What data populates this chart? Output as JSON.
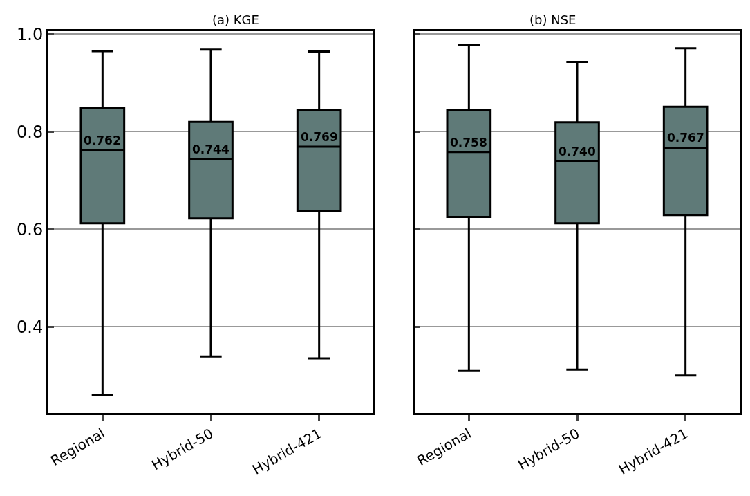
{
  "chart_data": [
    {
      "type": "box",
      "title": "(a) KGE",
      "categories": [
        "Regional",
        "Hybrid-50",
        "Hybrid-421"
      ],
      "boxes": [
        {
          "low": 0.259,
          "q1": 0.612,
          "median": 0.762,
          "q3": 0.849,
          "high": 0.965
        },
        {
          "low": 0.339,
          "q1": 0.622,
          "median": 0.744,
          "q3": 0.82,
          "high": 0.968
        },
        {
          "low": 0.335,
          "q1": 0.638,
          "median": 0.769,
          "q3": 0.845,
          "high": 0.964
        }
      ],
      "value_labels": [
        "0.762",
        "0.744",
        "0.769"
      ],
      "color": "#5f7a78",
      "ylim": [
        0.223,
        1.006
      ],
      "yticks": [
        {
          "value": 0.4,
          "label": "0.4"
        },
        {
          "value": 0.6,
          "label": "0.6"
        },
        {
          "value": 0.8,
          "label": "0.8"
        },
        {
          "value": 1.0,
          "label": "1.0"
        }
      ],
      "grid": "y"
    },
    {
      "type": "box",
      "title": "(b) NSE",
      "categories": [
        "Regional",
        "Hybrid-50",
        "Hybrid-421"
      ],
      "boxes": [
        {
          "low": 0.309,
          "q1": 0.625,
          "median": 0.758,
          "q3": 0.845,
          "high": 0.977
        },
        {
          "low": 0.312,
          "q1": 0.612,
          "median": 0.74,
          "q3": 0.819,
          "high": 0.943
        },
        {
          "low": 0.3,
          "q1": 0.629,
          "median": 0.767,
          "q3": 0.851,
          "high": 0.971
        }
      ],
      "value_labels": [
        "0.758",
        "0.740",
        "0.767"
      ],
      "color": "#5f7a78",
      "ylim": [
        0.223,
        1.006
      ],
      "yticks": [
        {
          "value": 0.4,
          "label": null
        },
        {
          "value": 0.6,
          "label": null
        },
        {
          "value": 0.8,
          "label": null
        },
        {
          "value": 1.0,
          "label": null
        }
      ],
      "grid": "y",
      "tick_labels": "x"
    }
  ]
}
